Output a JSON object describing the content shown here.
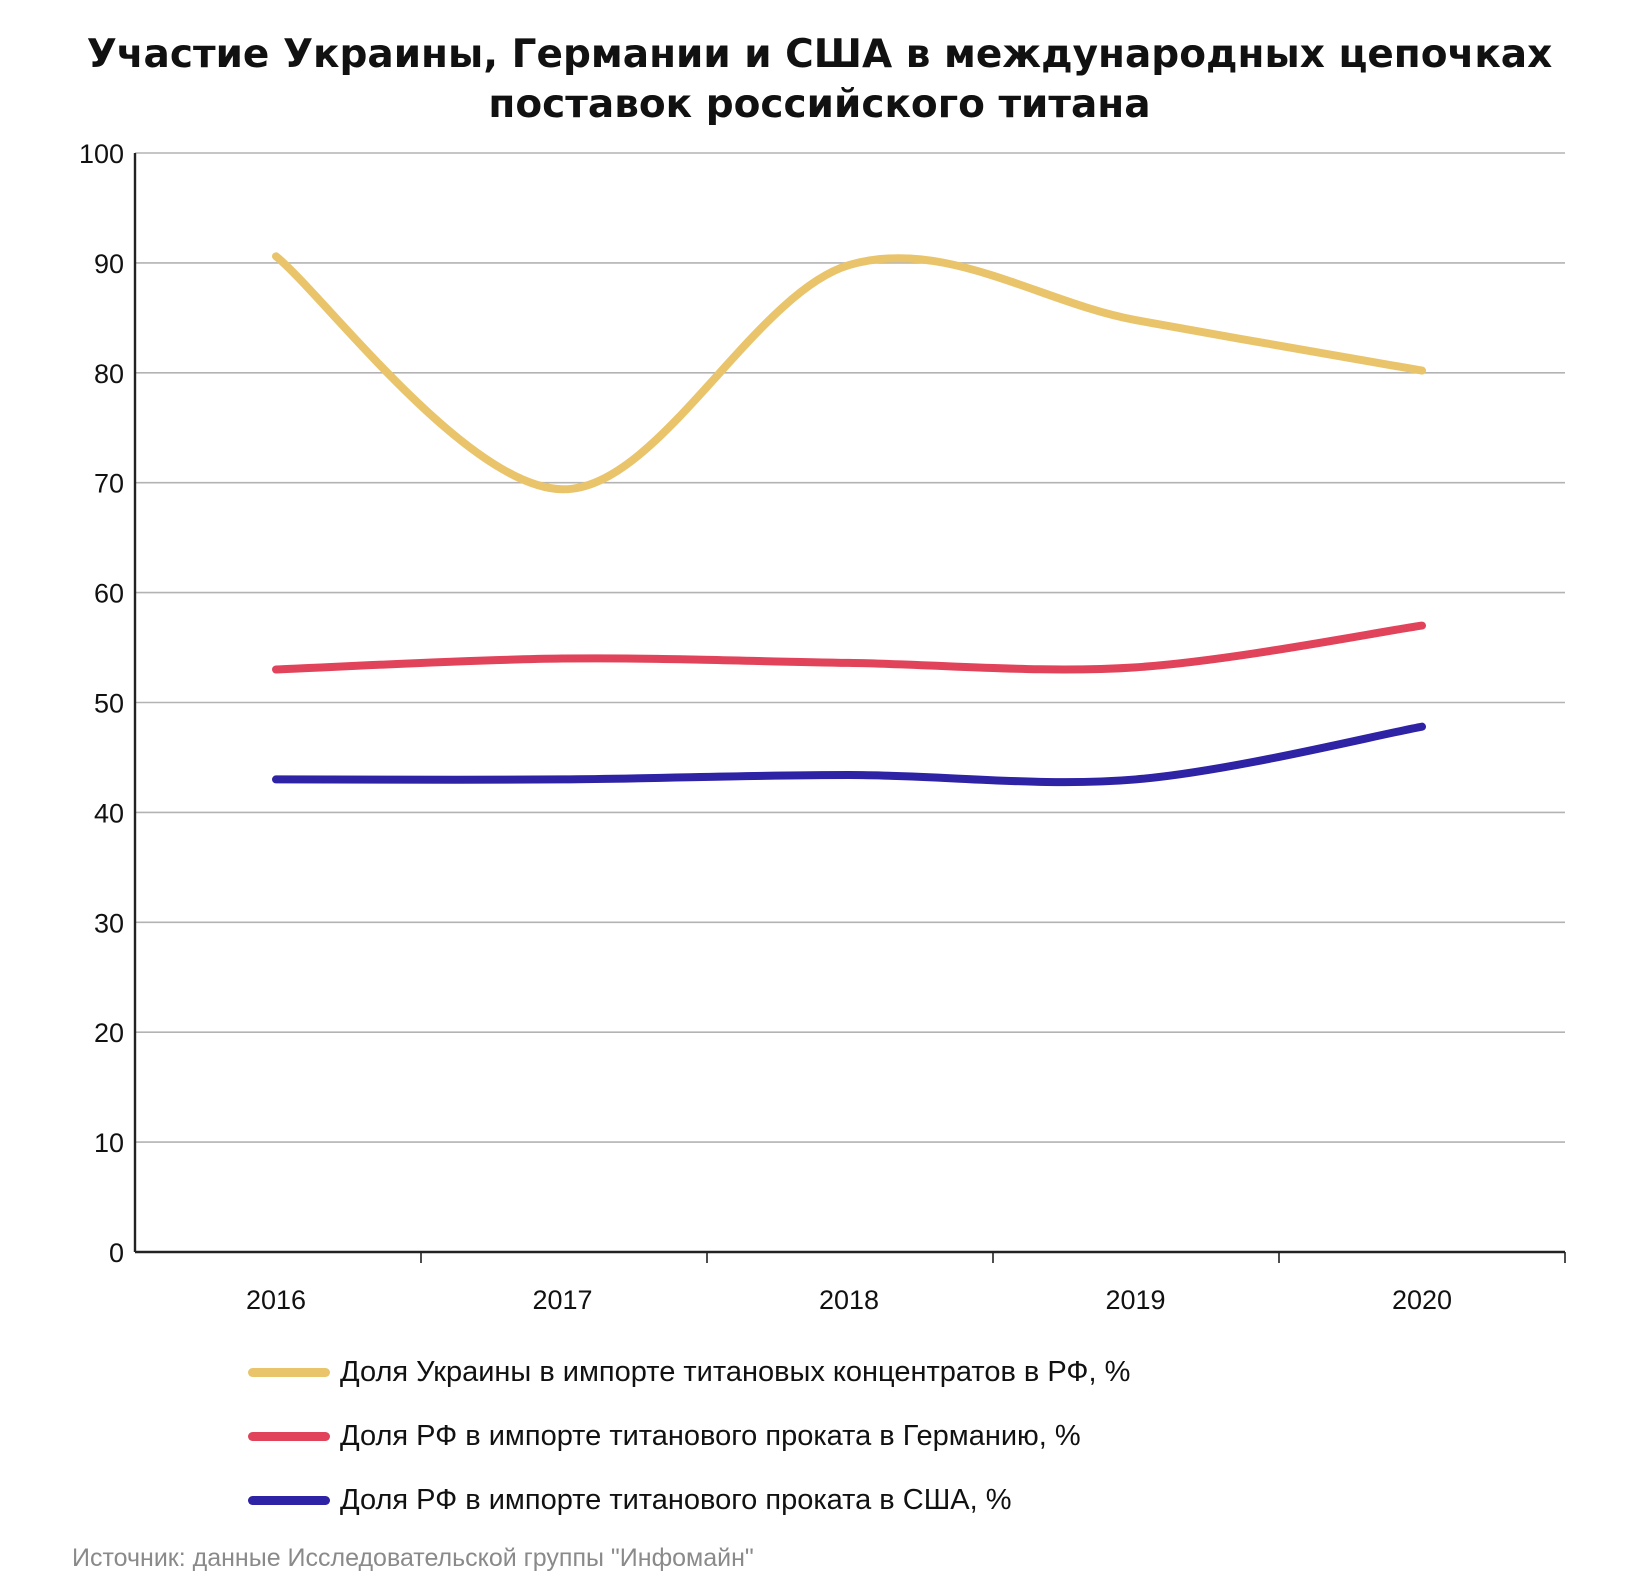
{
  "chart_data": {
    "type": "line",
    "title_lines": [
      "Участие Украины, Германии и США в международных цепочках",
      "поставок российского титана"
    ],
    "xlabel": "",
    "ylabel": "",
    "categories": [
      "2016",
      "2017",
      "2018",
      "2019",
      "2020"
    ],
    "ylim": [
      0,
      100
    ],
    "yticks": [
      "0",
      "10",
      "20",
      "30",
      "40",
      "50",
      "60",
      "70",
      "80",
      "90",
      "100"
    ],
    "grid": true,
    "legend_position": "bottom",
    "series": [
      {
        "name": "Доля Украины в импорте титановых концентратов в РФ, %",
        "color": "#E9C46A",
        "values": [
          90.6,
          69.4,
          89.8,
          84.8,
          80.2
        ]
      },
      {
        "name": "Доля РФ в импорте титанового проката в Германию, %",
        "color": "#E0435A",
        "values": [
          53,
          54,
          53.6,
          53.2,
          57
        ]
      },
      {
        "name": "Доля РФ в импорте титанового проката в США, %",
        "color": "#2E22A5",
        "values": [
          43,
          43,
          43.4,
          43,
          47.8
        ]
      }
    ]
  },
  "source": "Источник: данные Исследовательской группы \"Инфомайн\""
}
